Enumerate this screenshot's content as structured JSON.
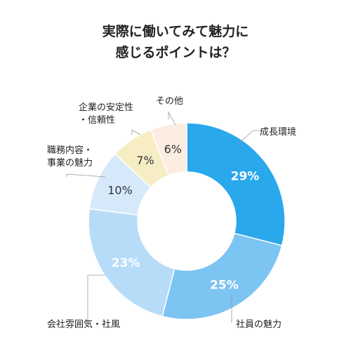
{
  "title": {
    "line1": "実際に働いてみて魅力に",
    "line2": "感じるポイントは？"
  },
  "chart_data": {
    "type": "pie",
    "donut": true,
    "unit": "%",
    "slices": [
      {
        "label": "成長環境",
        "label_lines": [
          "成長環境"
        ],
        "value": 29,
        "value_label": "29%",
        "color": "#29A8EC",
        "text_color": "#ffffff"
      },
      {
        "label": "社員の魅力",
        "label_lines": [
          "社員の魅力"
        ],
        "value": 25,
        "value_label": "25%",
        "color": "#7CC4F2",
        "text_color": "#ffffff"
      },
      {
        "label": "会社雰囲気・社風",
        "label_lines": [
          "会社雰囲気・社風"
        ],
        "value": 23,
        "value_label": "23%",
        "color": "#B6DCF8",
        "text_color": "#ffffff"
      },
      {
        "label": "職務内容・事業の魅力",
        "label_lines": [
          "職務内容・",
          "事業の魅力"
        ],
        "value": 10,
        "value_label": "10%",
        "color": "#D6E9FB",
        "text_color": "#333333"
      },
      {
        "label": "企業の安定性・信頼性",
        "label_lines": [
          "企業の安定性",
          "・信頼性"
        ],
        "value": 7,
        "value_label": "7%",
        "color": "#F7EDC4",
        "text_color": "#333333"
      },
      {
        "label": "その他",
        "label_lines": [
          "その他"
        ],
        "value": 6,
        "value_label": "6%",
        "color": "#FCEDE3",
        "text_color": "#333333"
      }
    ]
  }
}
